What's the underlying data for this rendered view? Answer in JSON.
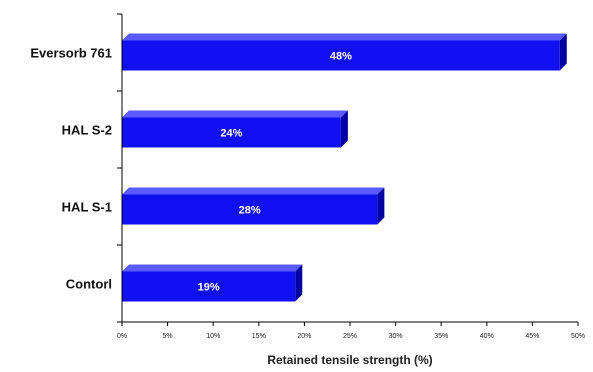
{
  "chart_data": {
    "type": "bar",
    "orientation": "horizontal",
    "style": "3d",
    "categories": [
      "Eversorb 761",
      "HALS-2",
      "HALS-1",
      "Contorl"
    ],
    "category_labels": [
      "Eversorb 761",
      "HAL S-2",
      "HAL S-1",
      "Contorl"
    ],
    "values": [
      48,
      24,
      28,
      19
    ],
    "value_labels": [
      "48%",
      "24%",
      "28%",
      "19%"
    ],
    "xlabel": "Retained tensile strength (%)",
    "ylabel": "",
    "xlim": [
      0,
      50
    ],
    "xticks": [
      0,
      5,
      10,
      15,
      20,
      25,
      30,
      35,
      40,
      45,
      50
    ],
    "xtick_labels": [
      "0%",
      "5%",
      "10%",
      "15%",
      "20%",
      "25%",
      "30%",
      "35%",
      "40%",
      "45%",
      "50%"
    ],
    "grid": false,
    "legend": "none",
    "colors": {
      "bar_front": "#1010f0",
      "bar_top": "#5a5aff",
      "bar_side": "#0000a0",
      "axis": "#000000"
    }
  }
}
